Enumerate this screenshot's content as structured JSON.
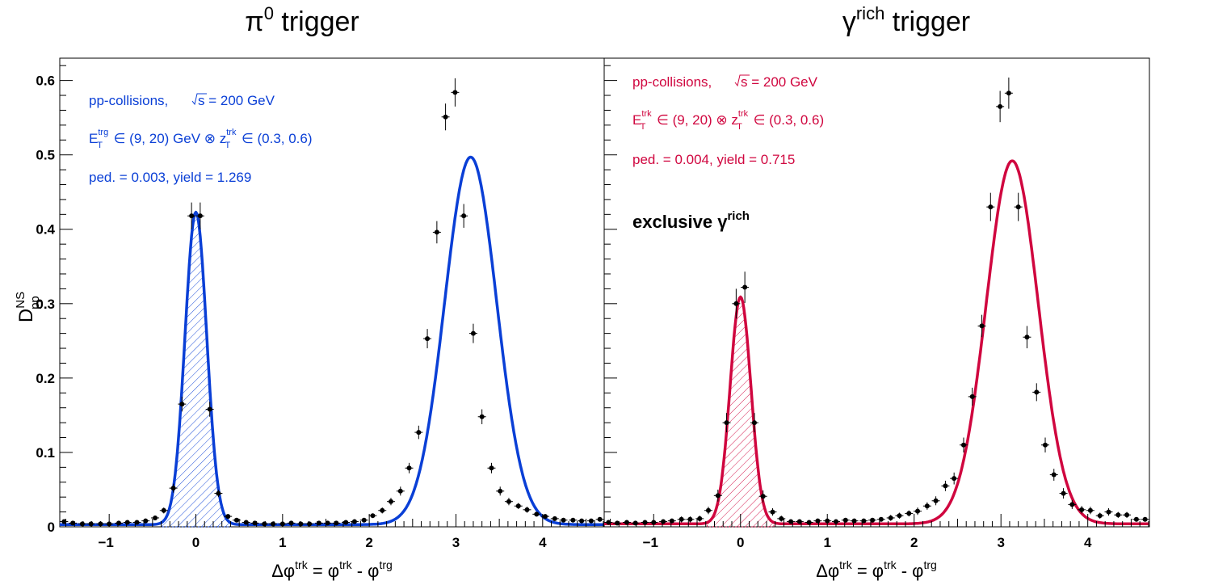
{
  "figure": {
    "panels": [
      {
        "title_main": "π",
        "title_sup": "0",
        "title_tail": " trigger",
        "color": "#0a3fd6",
        "annotation_1": "pp-collisions,",
        "sqrt_s": "s",
        "energy": " = 200 GeV",
        "cut_E": "E",
        "cut_E_sup": "trg",
        "cut_E_sub": "T",
        "cut_mid": " ∈ (9, 20) GeV ⊗ z",
        "cut_z_sup": "trk",
        "cut_z_sub": "T",
        "cut_tail": " ∈ (0.3, 0.6)",
        "ped_yield": "ped. = 0.003, yield = 1.269",
        "extra_label": "",
        "extra_sup": ""
      },
      {
        "title_main": "γ",
        "title_sup": "rich",
        "title_tail": " trigger",
        "color": "#d0063f",
        "annotation_1": "pp-collisions,",
        "sqrt_s": "s",
        "energy": " = 200 GeV",
        "cut_E": "E",
        "cut_E_sup": "trk",
        "cut_E_sub": "T",
        "cut_mid": " ∈ (9, 20) ⊗ z",
        "cut_z_sup": "trk",
        "cut_z_sub": "T",
        "cut_tail": " ∈ (0.3, 0.6)",
        "ped_yield": "ped. = 0.004, yield = 0.715",
        "extra_label": "exclusive γ",
        "extra_sup": "rich"
      }
    ],
    "ylabel_main": "D",
    "ylabel_sup": "NS",
    "ylabel_sub": "pp",
    "xlabel": {
      "a": "Δφ",
      "a_sup": "trk",
      "b": " = φ",
      "b_sup": "trk",
      "c": " - φ",
      "c_sup": "trg"
    }
  },
  "chart_data": [
    {
      "type": "scatter",
      "panel": "π0 trigger",
      "xlim": [
        -1.57,
        4.71
      ],
      "ylim": [
        0,
        0.63
      ],
      "x_ticks": [
        -1,
        0,
        1,
        2,
        3,
        4
      ],
      "y_ticks": [
        0,
        0.1,
        0.2,
        0.3,
        0.4,
        0.5,
        0.6
      ],
      "x_tick_labels": [
        "−1",
        "0",
        "1",
        "2",
        "3",
        "4"
      ],
      "y_tick_labels": [
        "0",
        "0.1",
        "0.2",
        "0.3",
        "0.4",
        "0.5",
        "0.6"
      ],
      "points": {
        "x": [
          -1.52,
          -1.42,
          -1.31,
          -1.21,
          -1.1,
          -1.0,
          -0.89,
          -0.79,
          -0.68,
          -0.58,
          -0.47,
          -0.37,
          -0.26,
          -0.16,
          -0.05,
          0.05,
          0.16,
          0.26,
          0.37,
          0.47,
          0.58,
          0.68,
          0.79,
          0.89,
          1.0,
          1.1,
          1.21,
          1.31,
          1.42,
          1.52,
          1.62,
          1.73,
          1.83,
          1.94,
          2.04,
          2.15,
          2.25,
          2.36,
          2.46,
          2.57,
          2.67,
          2.78,
          2.88,
          2.99,
          3.09,
          3.2,
          3.3,
          3.41,
          3.51,
          3.61,
          3.72,
          3.82,
          3.93,
          4.03,
          4.14,
          4.24,
          4.35,
          4.45,
          4.56,
          4.66
        ],
        "y": [
          0.007,
          0.005,
          0.004,
          0.004,
          0.004,
          0.004,
          0.005,
          0.006,
          0.006,
          0.008,
          0.012,
          0.022,
          0.052,
          0.165,
          0.418,
          0.418,
          0.158,
          0.045,
          0.014,
          0.009,
          0.006,
          0.005,
          0.004,
          0.004,
          0.004,
          0.005,
          0.004,
          0.004,
          0.005,
          0.005,
          0.005,
          0.006,
          0.007,
          0.009,
          0.015,
          0.022,
          0.034,
          0.048,
          0.079,
          0.127,
          0.253,
          0.396,
          0.551,
          0.584,
          0.418,
          0.26,
          0.148,
          0.079,
          0.048,
          0.034,
          0.028,
          0.023,
          0.017,
          0.014,
          0.011,
          0.009,
          0.009,
          0.008,
          0.008,
          0.01
        ],
        "yerr": [
          0.003,
          0.002,
          0.002,
          0.002,
          0.002,
          0.002,
          0.002,
          0.002,
          0.002,
          0.003,
          0.003,
          0.004,
          0.006,
          0.01,
          0.018,
          0.018,
          0.01,
          0.005,
          0.003,
          0.003,
          0.002,
          0.002,
          0.002,
          0.002,
          0.002,
          0.002,
          0.002,
          0.002,
          0.002,
          0.002,
          0.002,
          0.002,
          0.003,
          0.003,
          0.003,
          0.004,
          0.005,
          0.006,
          0.007,
          0.009,
          0.013,
          0.015,
          0.018,
          0.019,
          0.016,
          0.013,
          0.01,
          0.007,
          0.006,
          0.005,
          0.004,
          0.004,
          0.003,
          0.003,
          0.003,
          0.003,
          0.003,
          0.002,
          0.002,
          0.003
        ]
      },
      "fit": {
        "pedestal": 0.003,
        "near_amp": 0.42,
        "near_mu": 0.0,
        "near_sigma": 0.125,
        "away_amp": 0.494,
        "away_mu": 3.17,
        "away_sigma": 0.3
      }
    },
    {
      "type": "scatter",
      "panel": "γrich trigger",
      "xlim": [
        -1.57,
        4.71
      ],
      "ylim": [
        0,
        0.63
      ],
      "x_ticks": [
        -1,
        0,
        1,
        2,
        3,
        4
      ],
      "y_ticks": [
        0,
        0.1,
        0.2,
        0.3,
        0.4,
        0.5,
        0.6
      ],
      "x_tick_labels": [
        "−1",
        "0",
        "1",
        "2",
        "3",
        "4"
      ],
      "points": {
        "x": [
          -1.52,
          -1.42,
          -1.31,
          -1.21,
          -1.1,
          -1.0,
          -0.89,
          -0.79,
          -0.68,
          -0.58,
          -0.47,
          -0.37,
          -0.26,
          -0.16,
          -0.05,
          0.05,
          0.16,
          0.26,
          0.37,
          0.47,
          0.58,
          0.68,
          0.79,
          0.89,
          1.0,
          1.1,
          1.21,
          1.31,
          1.42,
          1.52,
          1.62,
          1.73,
          1.83,
          1.94,
          2.04,
          2.15,
          2.25,
          2.36,
          2.46,
          2.57,
          2.67,
          2.78,
          2.88,
          2.99,
          3.09,
          3.2,
          3.3,
          3.41,
          3.51,
          3.61,
          3.72,
          3.82,
          3.93,
          4.03,
          4.14,
          4.24,
          4.35,
          4.45,
          4.56,
          4.66
        ],
        "y": [
          0.006,
          0.005,
          0.006,
          0.005,
          0.006,
          0.006,
          0.007,
          0.008,
          0.01,
          0.01,
          0.011,
          0.022,
          0.042,
          0.14,
          0.3,
          0.322,
          0.14,
          0.041,
          0.02,
          0.011,
          0.007,
          0.007,
          0.006,
          0.008,
          0.008,
          0.007,
          0.009,
          0.008,
          0.008,
          0.009,
          0.01,
          0.012,
          0.015,
          0.018,
          0.021,
          0.028,
          0.035,
          0.055,
          0.065,
          0.11,
          0.175,
          0.27,
          0.43,
          0.565,
          0.583,
          0.43,
          0.255,
          0.181,
          0.11,
          0.07,
          0.045,
          0.03,
          0.023,
          0.022,
          0.015,
          0.02,
          0.016,
          0.016,
          0.01,
          0.01
        ],
        "yerr": [
          0.003,
          0.003,
          0.003,
          0.003,
          0.003,
          0.003,
          0.003,
          0.003,
          0.004,
          0.004,
          0.004,
          0.005,
          0.008,
          0.013,
          0.02,
          0.021,
          0.013,
          0.008,
          0.005,
          0.004,
          0.003,
          0.003,
          0.003,
          0.003,
          0.003,
          0.003,
          0.003,
          0.003,
          0.003,
          0.003,
          0.003,
          0.004,
          0.004,
          0.004,
          0.005,
          0.005,
          0.006,
          0.007,
          0.008,
          0.01,
          0.012,
          0.015,
          0.019,
          0.021,
          0.021,
          0.019,
          0.015,
          0.012,
          0.01,
          0.008,
          0.007,
          0.006,
          0.005,
          0.005,
          0.004,
          0.005,
          0.004,
          0.004,
          0.003,
          0.003
        ]
      },
      "fit": {
        "pedestal": 0.004,
        "near_amp": 0.305,
        "near_mu": 0.0,
        "near_sigma": 0.12,
        "away_amp": 0.488,
        "away_mu": 3.13,
        "away_sigma": 0.3
      }
    }
  ]
}
